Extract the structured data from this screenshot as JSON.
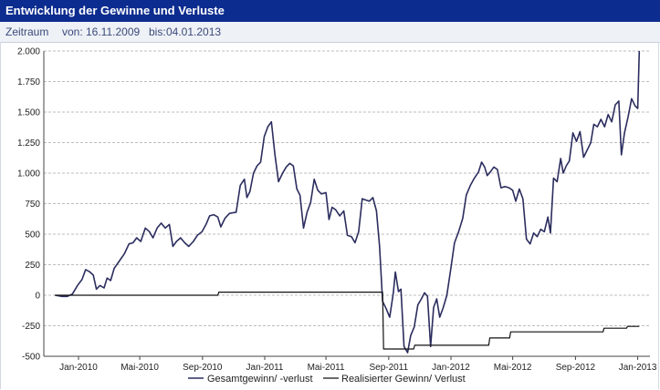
{
  "header": {
    "title": "Entwicklung der Gewinne und Verluste"
  },
  "filter": {
    "label": "Zeitraum",
    "from_label": "von:",
    "from_value": "16.11.2009",
    "to_label": "bis:",
    "to_value": "04.01.2013"
  },
  "colors": {
    "header_bg": "#0d2c8f",
    "series_total": "#2b2d5e",
    "series_realized": "#111111",
    "grid": "#bdbdbd"
  },
  "chart_data": {
    "type": "line",
    "title": "",
    "xlabel": "",
    "ylabel": "",
    "ylim": [
      -500,
      2000
    ],
    "xlim": [
      "2009-10-25",
      "2013-01-25"
    ],
    "grid": true,
    "y_ticks": [
      {
        "value": 2000,
        "label": "2.000"
      },
      {
        "value": 1750,
        "label": "1.750"
      },
      {
        "value": 1500,
        "label": "1.500"
      },
      {
        "value": 1250,
        "label": "1.250"
      },
      {
        "value": 1000,
        "label": "1.000"
      },
      {
        "value": 750,
        "label": "750"
      },
      {
        "value": 500,
        "label": "500"
      },
      {
        "value": 250,
        "label": "250"
      },
      {
        "value": 0,
        "label": "0"
      },
      {
        "value": -250,
        "label": "-250"
      },
      {
        "value": -500,
        "label": "-500"
      }
    ],
    "x_ticks": [
      {
        "date": "2010-01-01",
        "label": "Jan-2010"
      },
      {
        "date": "2010-05-01",
        "label": "Mai-2010"
      },
      {
        "date": "2010-09-01",
        "label": "Sep-2010"
      },
      {
        "date": "2011-01-01",
        "label": "Jan-2011"
      },
      {
        "date": "2011-05-01",
        "label": "Mai-2011"
      },
      {
        "date": "2011-09-01",
        "label": "Sep-2011"
      },
      {
        "date": "2012-01-01",
        "label": "Jan-2012"
      },
      {
        "date": "2012-05-01",
        "label": "Mai-2012"
      },
      {
        "date": "2012-09-01",
        "label": "Sep-2012"
      },
      {
        "date": "2013-01-01",
        "label": "Jan-2013"
      }
    ],
    "legend_position": "bottom",
    "series": [
      {
        "name": "Gesamtgewinn/ -verlust",
        "points": [
          [
            "2009-11-16",
            0
          ],
          [
            "2009-11-30",
            -10
          ],
          [
            "2009-12-10",
            -10
          ],
          [
            "2009-12-20",
            10
          ],
          [
            "2009-12-30",
            80
          ],
          [
            "2010-01-08",
            130
          ],
          [
            "2010-01-15",
            210
          ],
          [
            "2010-01-22",
            195
          ],
          [
            "2010-01-30",
            165
          ],
          [
            "2010-02-05",
            50
          ],
          [
            "2010-02-12",
            80
          ],
          [
            "2010-02-20",
            60
          ],
          [
            "2010-02-26",
            140
          ],
          [
            "2010-03-05",
            120
          ],
          [
            "2010-03-12",
            220
          ],
          [
            "2010-03-22",
            280
          ],
          [
            "2010-04-01",
            340
          ],
          [
            "2010-04-10",
            420
          ],
          [
            "2010-04-18",
            430
          ],
          [
            "2010-04-25",
            470
          ],
          [
            "2010-05-03",
            440
          ],
          [
            "2010-05-12",
            550
          ],
          [
            "2010-05-20",
            520
          ],
          [
            "2010-05-27",
            470
          ],
          [
            "2010-06-04",
            550
          ],
          [
            "2010-06-12",
            590
          ],
          [
            "2010-06-20",
            550
          ],
          [
            "2010-06-28",
            580
          ],
          [
            "2010-07-05",
            400
          ],
          [
            "2010-07-12",
            440
          ],
          [
            "2010-07-20",
            470
          ],
          [
            "2010-07-28",
            430
          ],
          [
            "2010-08-05",
            400
          ],
          [
            "2010-08-14",
            440
          ],
          [
            "2010-08-22",
            490
          ],
          [
            "2010-08-31",
            520
          ],
          [
            "2010-09-08",
            580
          ],
          [
            "2010-09-15",
            650
          ],
          [
            "2010-09-23",
            660
          ],
          [
            "2010-10-01",
            640
          ],
          [
            "2010-10-07",
            560
          ],
          [
            "2010-10-15",
            630
          ],
          [
            "2010-10-24",
            670
          ],
          [
            "2010-11-06",
            680
          ],
          [
            "2010-11-14",
            900
          ],
          [
            "2010-11-22",
            950
          ],
          [
            "2010-11-27",
            800
          ],
          [
            "2010-12-03",
            850
          ],
          [
            "2010-12-10",
            1000
          ],
          [
            "2010-12-17",
            1060
          ],
          [
            "2010-12-24",
            1090
          ],
          [
            "2010-12-31",
            1300
          ],
          [
            "2011-01-07",
            1380
          ],
          [
            "2011-01-14",
            1420
          ],
          [
            "2011-01-21",
            1150
          ],
          [
            "2011-01-28",
            930
          ],
          [
            "2011-02-05",
            1000
          ],
          [
            "2011-02-12",
            1050
          ],
          [
            "2011-02-19",
            1080
          ],
          [
            "2011-02-26",
            1060
          ],
          [
            "2011-03-05",
            870
          ],
          [
            "2011-03-11",
            820
          ],
          [
            "2011-03-18",
            550
          ],
          [
            "2011-03-25",
            680
          ],
          [
            "2011-04-01",
            760
          ],
          [
            "2011-04-08",
            950
          ],
          [
            "2011-04-15",
            860
          ],
          [
            "2011-04-22",
            830
          ],
          [
            "2011-05-01",
            840
          ],
          [
            "2011-05-07",
            620
          ],
          [
            "2011-05-13",
            720
          ],
          [
            "2011-05-20",
            700
          ],
          [
            "2011-05-28",
            650
          ],
          [
            "2011-06-05",
            690
          ],
          [
            "2011-06-12",
            490
          ],
          [
            "2011-06-20",
            480
          ],
          [
            "2011-06-27",
            430
          ],
          [
            "2011-07-04",
            520
          ],
          [
            "2011-07-11",
            790
          ],
          [
            "2011-07-18",
            780
          ],
          [
            "2011-07-25",
            770
          ],
          [
            "2011-08-01",
            800
          ],
          [
            "2011-08-08",
            690
          ],
          [
            "2011-08-14",
            400
          ],
          [
            "2011-08-20",
            -50
          ],
          [
            "2011-08-27",
            -110
          ],
          [
            "2011-09-03",
            -180
          ],
          [
            "2011-09-10",
            20
          ],
          [
            "2011-09-14",
            190
          ],
          [
            "2011-09-20",
            30
          ],
          [
            "2011-09-25",
            50
          ],
          [
            "2011-10-01",
            -420
          ],
          [
            "2011-10-08",
            -470
          ],
          [
            "2011-10-14",
            -330
          ],
          [
            "2011-10-21",
            -260
          ],
          [
            "2011-10-28",
            -80
          ],
          [
            "2011-11-04",
            -30
          ],
          [
            "2011-11-10",
            20
          ],
          [
            "2011-11-16",
            -10
          ],
          [
            "2011-11-22",
            -420
          ],
          [
            "2011-11-28",
            -100
          ],
          [
            "2011-12-04",
            -30
          ],
          [
            "2011-12-10",
            -180
          ],
          [
            "2011-12-17",
            -100
          ],
          [
            "2011-12-24",
            0
          ],
          [
            "2011-12-31",
            200
          ],
          [
            "2012-01-08",
            430
          ],
          [
            "2012-01-16",
            520
          ],
          [
            "2012-01-24",
            630
          ],
          [
            "2012-01-31",
            820
          ],
          [
            "2012-02-08",
            900
          ],
          [
            "2012-02-16",
            960
          ],
          [
            "2012-02-24",
            1010
          ],
          [
            "2012-03-01",
            1090
          ],
          [
            "2012-03-07",
            1050
          ],
          [
            "2012-03-12",
            980
          ],
          [
            "2012-03-18",
            1010
          ],
          [
            "2012-03-25",
            1050
          ],
          [
            "2012-04-01",
            1030
          ],
          [
            "2012-04-08",
            880
          ],
          [
            "2012-04-16",
            890
          ],
          [
            "2012-04-24",
            880
          ],
          [
            "2012-05-01",
            860
          ],
          [
            "2012-05-07",
            770
          ],
          [
            "2012-05-14",
            870
          ],
          [
            "2012-05-21",
            790
          ],
          [
            "2012-05-28",
            460
          ],
          [
            "2012-06-04",
            420
          ],
          [
            "2012-06-11",
            510
          ],
          [
            "2012-06-18",
            480
          ],
          [
            "2012-06-25",
            540
          ],
          [
            "2012-07-02",
            520
          ],
          [
            "2012-07-09",
            640
          ],
          [
            "2012-07-14",
            510
          ],
          [
            "2012-07-20",
            960
          ],
          [
            "2012-07-27",
            930
          ],
          [
            "2012-08-03",
            1120
          ],
          [
            "2012-08-08",
            1000
          ],
          [
            "2012-08-14",
            1060
          ],
          [
            "2012-08-20",
            1100
          ],
          [
            "2012-08-27",
            1330
          ],
          [
            "2012-09-03",
            1260
          ],
          [
            "2012-09-10",
            1340
          ],
          [
            "2012-09-17",
            1130
          ],
          [
            "2012-09-24",
            1190
          ],
          [
            "2012-10-01",
            1250
          ],
          [
            "2012-10-07",
            1400
          ],
          [
            "2012-10-14",
            1380
          ],
          [
            "2012-10-21",
            1440
          ],
          [
            "2012-10-28",
            1380
          ],
          [
            "2012-11-04",
            1480
          ],
          [
            "2012-11-11",
            1420
          ],
          [
            "2012-11-18",
            1560
          ],
          [
            "2012-11-25",
            1590
          ],
          [
            "2012-11-30",
            1150
          ],
          [
            "2012-12-06",
            1330
          ],
          [
            "2012-12-13",
            1460
          ],
          [
            "2012-12-20",
            1610
          ],
          [
            "2012-12-27",
            1550
          ],
          [
            "2013-01-01",
            1530
          ],
          [
            "2013-01-04",
            2000
          ]
        ]
      },
      {
        "name": "Realisierter Gewinn/ Verlust",
        "points": [
          [
            "2009-11-16",
            0
          ],
          [
            "2010-10-01",
            0
          ],
          [
            "2010-10-03",
            25
          ],
          [
            "2011-08-20",
            25
          ],
          [
            "2011-08-22",
            -440
          ],
          [
            "2011-10-20",
            -440
          ],
          [
            "2011-10-22",
            -410
          ],
          [
            "2012-03-15",
            -410
          ],
          [
            "2012-03-17",
            -350
          ],
          [
            "2012-04-25",
            -350
          ],
          [
            "2012-04-27",
            -300
          ],
          [
            "2012-10-25",
            -300
          ],
          [
            "2012-10-27",
            -270
          ],
          [
            "2012-12-10",
            -270
          ],
          [
            "2012-12-12",
            -255
          ],
          [
            "2013-01-04",
            -255
          ]
        ]
      }
    ]
  }
}
